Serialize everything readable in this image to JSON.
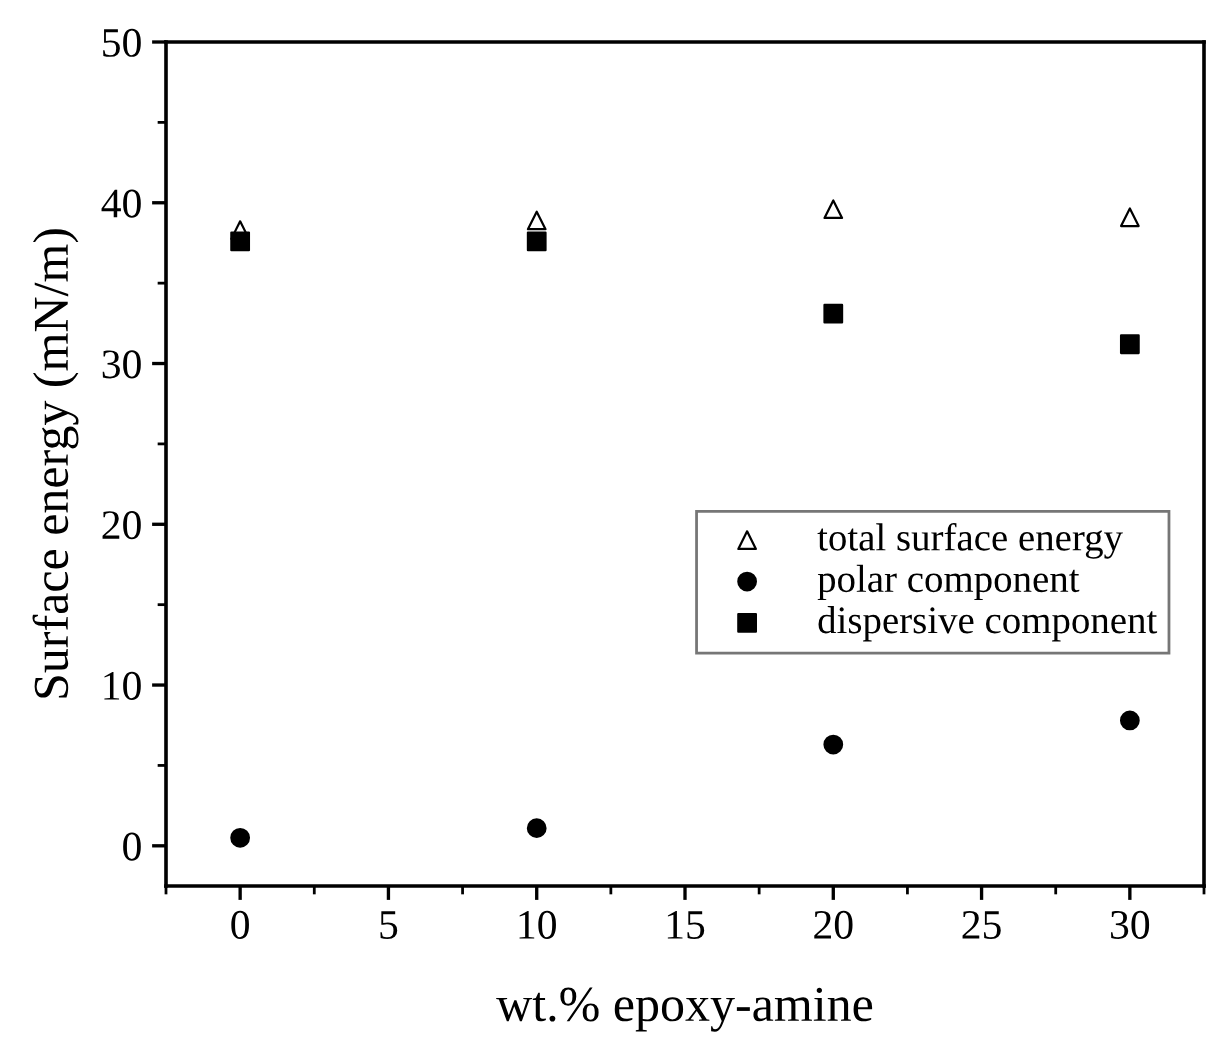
{
  "chart_data": {
    "type": "scatter",
    "xlabel": "wt.% epoxy-amine",
    "ylabel": "Surface energy (mN/m)",
    "x": [
      0,
      10,
      20,
      30
    ],
    "series": [
      {
        "name": "total surface energy",
        "color": "#000000",
        "marker": "triangle",
        "values": [
          38.3,
          38.9,
          39.6,
          39.1
        ]
      },
      {
        "name": "polar component",
        "color": "#000000",
        "marker": "circle",
        "values": [
          0.5,
          1.1,
          6.3,
          7.8
        ]
      },
      {
        "name": "dispersive component",
        "color": "#000000",
        "marker": "square",
        "values": [
          37.6,
          37.6,
          33.1,
          31.2
        ]
      }
    ],
    "xlim": [
      -2.5,
      32.5
    ],
    "xticks": [
      0,
      5,
      10,
      15,
      20,
      25,
      30
    ],
    "ylim": [
      -2.5,
      50
    ],
    "yticks": [
      0,
      10,
      20,
      30,
      40,
      50
    ],
    "grid": false,
    "legend": "right"
  }
}
